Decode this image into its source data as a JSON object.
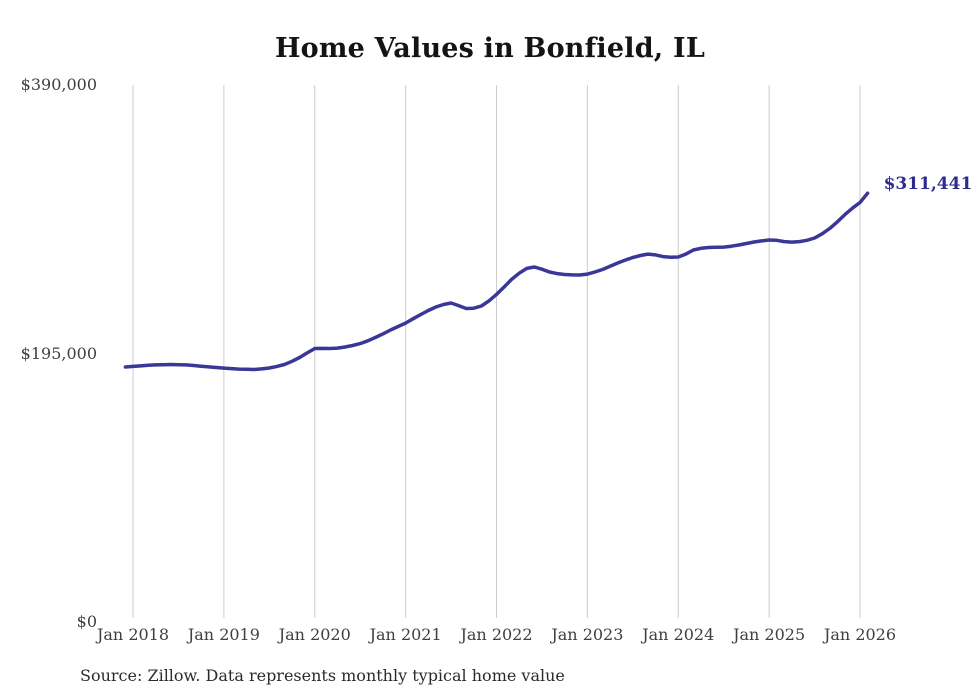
{
  "chart_data": {
    "type": "line",
    "title": "Home Values in Bonfield, IL",
    "source_note": "Source: Zillow. Data represents monthly typical home value",
    "end_label": "$311,441",
    "end_value": 311441,
    "grid": "vertical-only",
    "legend": "none",
    "y_axis": {
      "min": 0,
      "max": 390000,
      "ticks": [
        {
          "label": "$390,000",
          "value": 390000
        },
        {
          "label": "$195,000",
          "value": 195000
        },
        {
          "label": "$0",
          "value": 0
        }
      ]
    },
    "x_axis": {
      "start_month": "Dec 2017",
      "end_month": "Feb 2026",
      "frequency": "monthly",
      "ticks": [
        {
          "label": "Jan 2018",
          "month_index": 1
        },
        {
          "label": "Jan 2019",
          "month_index": 13
        },
        {
          "label": "Jan 2020",
          "month_index": 25
        },
        {
          "label": "Jan 2021",
          "month_index": 37
        },
        {
          "label": "Jan 2022",
          "month_index": 49
        },
        {
          "label": "Jan 2023",
          "month_index": 61
        },
        {
          "label": "Jan 2024",
          "month_index": 73
        },
        {
          "label": "Jan 2025",
          "month_index": 85
        },
        {
          "label": "Jan 2026",
          "month_index": 97
        }
      ]
    },
    "series": [
      {
        "name": "Typical home value",
        "values": [
          185200,
          185600,
          186000,
          186400,
          186700,
          186900,
          187000,
          186900,
          186700,
          186300,
          185800,
          185300,
          184800,
          184400,
          184000,
          183700,
          183500,
          183400,
          183800,
          184500,
          185600,
          187000,
          189300,
          192100,
          195400,
          198600,
          198700,
          198600,
          198900,
          199700,
          200800,
          202200,
          204200,
          206600,
          209200,
          212100,
          214600,
          217100,
          220300,
          223300,
          226200,
          228800,
          230600,
          231700,
          229800,
          227700,
          227900,
          229500,
          233200,
          237900,
          243300,
          248800,
          253300,
          256800,
          257800,
          256200,
          254200,
          253000,
          252400,
          252100,
          252000,
          252700,
          254200,
          256000,
          258300,
          260700,
          262800,
          264700,
          266200,
          267200,
          266600,
          265400,
          264900,
          265100,
          267200,
          270200,
          271400,
          272000,
          272100,
          272300,
          272900,
          273800,
          274900,
          276000,
          276800,
          277400,
          277200,
          276300,
          275900,
          276300,
          277200,
          278900,
          281900,
          285800,
          290600,
          295900,
          300500,
          304700,
          311441
        ]
      }
    ],
    "colors": {
      "line": "#3b3799",
      "end_label": "#2e2b90",
      "grid": "#cdcdcd",
      "tick_text": "#3f3f3f",
      "title_text": "#141414",
      "source_text": "#2b2b2b"
    }
  }
}
